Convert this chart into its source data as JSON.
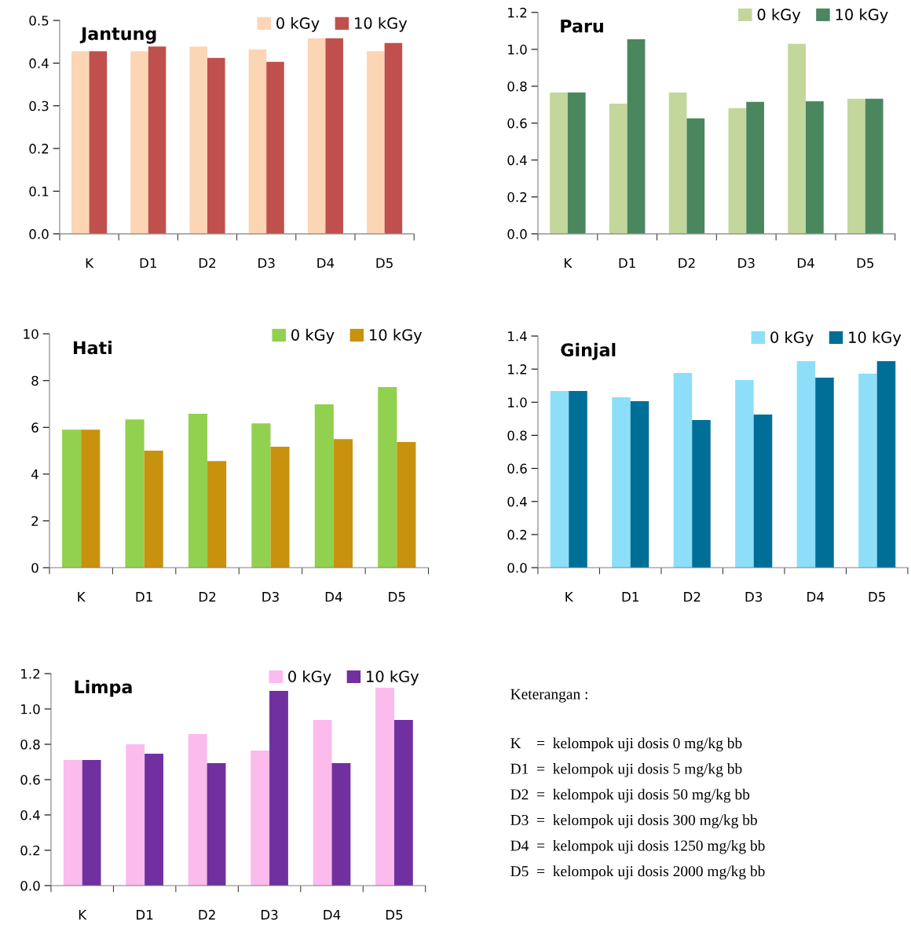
{
  "chart_data": [
    {
      "type": "bar",
      "title": "Jantung",
      "categories": [
        "K",
        "D1",
        "D2",
        "D3",
        "D4",
        "D5"
      ],
      "legend": "top right",
      "grid": false,
      "ylim": [
        0,
        0.5
      ],
      "yticks": [
        {
          "value": 0,
          "label": "0.0"
        },
        {
          "value": 0.1,
          "label": "0.1"
        },
        {
          "value": 0.2,
          "label": "0.2"
        },
        {
          "value": 0.3,
          "label": "0.3"
        },
        {
          "value": 0.4,
          "label": "0.4"
        },
        {
          "value": 0.5,
          "label": "0.5"
        }
      ],
      "series": [
        {
          "name": "0 kGy",
          "color": "#fcd5b5",
          "values": [
            0.428,
            0.428,
            0.439,
            0.432,
            0.458,
            0.428
          ]
        },
        {
          "name": "10 kGy",
          "color": "#c0504d",
          "values": [
            0.428,
            0.439,
            0.412,
            0.403,
            0.458,
            0.447
          ]
        }
      ]
    },
    {
      "type": "bar",
      "title": "Paru",
      "categories": [
        "K",
        "D1",
        "D2",
        "D3",
        "D4",
        "D5"
      ],
      "legend": "top right",
      "grid": false,
      "ylim": [
        0,
        1.2
      ],
      "yticks": [
        {
          "value": 0,
          "label": "0.0"
        },
        {
          "value": 0.2,
          "label": "0.2"
        },
        {
          "value": 0.4,
          "label": "0.4"
        },
        {
          "value": 0.6,
          "label": "0.6"
        },
        {
          "value": 0.8,
          "label": "0.8"
        },
        {
          "value": 1.0,
          "label": "1.0"
        },
        {
          "value": 1.2,
          "label": "1.2"
        }
      ],
      "series": [
        {
          "name": "0 kGy",
          "color": "#c3d69b",
          "values": [
            0.766,
            0.706,
            0.766,
            0.681,
            1.03,
            0.732
          ]
        },
        {
          "name": "10 kGy",
          "color": "#4a875e",
          "values": [
            0.766,
            1.055,
            0.626,
            0.715,
            0.719,
            0.732
          ]
        }
      ]
    },
    {
      "type": "bar",
      "title": "Hati",
      "categories": [
        "K",
        "D1",
        "D2",
        "D3",
        "D4",
        "D5"
      ],
      "legend": "top right",
      "grid": false,
      "ylim": [
        0,
        10
      ],
      "yticks": [
        0,
        2,
        4,
        6,
        8,
        10
      ],
      "series": [
        {
          "name": "0 kGy",
          "color": "#92d050",
          "values": [
            5.9,
            6.34,
            6.58,
            6.17,
            6.98,
            7.72
          ]
        },
        {
          "name": "10 kGy",
          "color": "#c8920e",
          "values": [
            5.9,
            5.0,
            4.56,
            5.17,
            5.5,
            5.37
          ]
        }
      ]
    },
    {
      "type": "bar",
      "title": "Ginjal",
      "categories": [
        "K",
        "D1",
        "D2",
        "D3",
        "D4",
        "D5"
      ],
      "legend": "top right",
      "grid": false,
      "ylim": [
        0,
        1.4
      ],
      "yticks": [
        {
          "value": 0,
          "label": "0.0"
        },
        {
          "value": 0.2,
          "label": "0.2"
        },
        {
          "value": 0.4,
          "label": "0.4"
        },
        {
          "value": 0.6,
          "label": "0.6"
        },
        {
          "value": 0.8,
          "label": "0.8"
        },
        {
          "value": 1.0,
          "label": "1.0"
        },
        {
          "value": 1.2,
          "label": "1.2"
        },
        {
          "value": 1.4,
          "label": "1.4"
        }
      ],
      "series": [
        {
          "name": "0 kGy",
          "color": "#8ddff9",
          "values": [
            1.068,
            1.03,
            1.177,
            1.134,
            1.248,
            1.172
          ]
        },
        {
          "name": "10 kGy",
          "color": "#006f98",
          "values": [
            1.068,
            1.006,
            0.892,
            0.925,
            1.149,
            1.248
          ]
        }
      ]
    },
    {
      "type": "bar",
      "title": "Limpa",
      "categories": [
        "K",
        "D1",
        "D2",
        "D3",
        "D4",
        "D5"
      ],
      "legend": "top right",
      "grid": false,
      "ylim": [
        0,
        1.2
      ],
      "yticks": [
        {
          "value": 0,
          "label": "0.0"
        },
        {
          "value": 0.2,
          "label": "0.2"
        },
        {
          "value": 0.4,
          "label": "0.4"
        },
        {
          "value": 0.6,
          "label": "0.6"
        },
        {
          "value": 0.8,
          "label": "0.8"
        },
        {
          "value": 1.0,
          "label": "1.0"
        },
        {
          "value": 1.2,
          "label": "1.2"
        }
      ],
      "series": [
        {
          "name": "0 kGy",
          "color": "#fbbbec",
          "values": [
            0.711,
            0.8,
            0.858,
            0.764,
            0.938,
            1.12
          ]
        },
        {
          "name": "10 kGy",
          "color": "#7030a0",
          "values": [
            0.711,
            0.747,
            0.693,
            1.102,
            0.693,
            0.938
          ]
        }
      ]
    },
    {
      "type": "other",
      "title": "Keterangan :",
      "annotations": [
        "K    =  kelompok uji dosis 0 mg/kg bb",
        "D1  =  kelompok uji dosis 5 mg/kg bb",
        "D2  =  kelompok uji dosis 50 mg/kg bb",
        "D3  =  kelompok uji dosis 300 mg/kg bb",
        "D4  =  kelompok uji dosis 1250 mg/kg bb",
        "D5  =  kelompok uji dosis 2000 mg/kg bb"
      ]
    }
  ]
}
